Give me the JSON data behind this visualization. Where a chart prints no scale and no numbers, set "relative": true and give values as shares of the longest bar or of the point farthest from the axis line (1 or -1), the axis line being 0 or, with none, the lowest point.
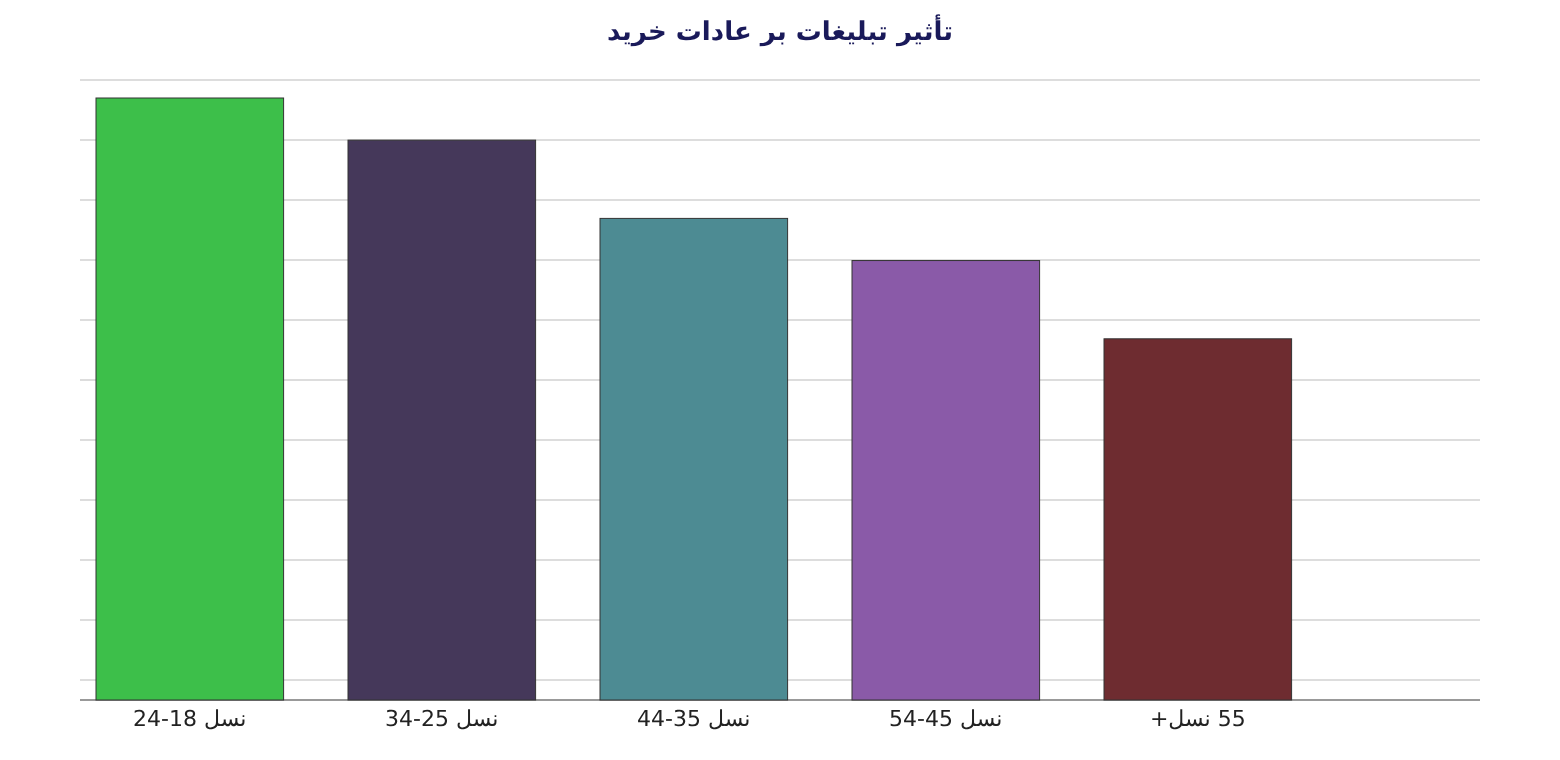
{
  "chart_data": {
    "type": "bar",
    "title": "تأثیر تبلیغات بر عادات خرید",
    "relative": true,
    "grid": "y",
    "categories": [
      "نسل 18-24",
      "نسل 25-34",
      "نسل 35-44",
      "نسل 45-54",
      "55 نسل+"
    ],
    "values": [
      1,
      0.93,
      0.8,
      0.73,
      0.6
    ],
    "colors": [
      "#3dbf4a",
      "#45385a",
      "#4d8b93",
      "#8a5aa8",
      "#6e2c30"
    ]
  }
}
